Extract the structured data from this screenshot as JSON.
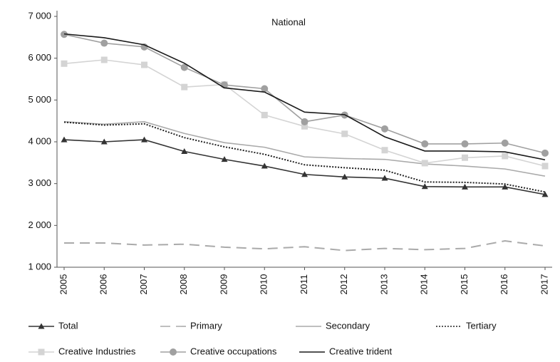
{
  "chart_data": {
    "type": "line",
    "title": "National",
    "categories": [
      "2005",
      "2006",
      "2007",
      "2008",
      "2009",
      "2010",
      "2011",
      "2012",
      "2013",
      "2014",
      "2015",
      "2016",
      "2017"
    ],
    "ylim": [
      1000,
      7000
    ],
    "yticks": [
      {
        "value": 1000,
        "label": "1 000"
      },
      {
        "value": 2000,
        "label": "2 000"
      },
      {
        "value": 3000,
        "label": "3 000"
      },
      {
        "value": 4000,
        "label": "4 000"
      },
      {
        "value": 5000,
        "label": "5 000"
      },
      {
        "value": 6000,
        "label": "6 000"
      },
      {
        "value": 7000,
        "label": "7 000"
      }
    ],
    "grid": false,
    "series": [
      {
        "name": "Total",
        "color": "#333333",
        "dash": "none",
        "marker": "triangle",
        "values": [
          4050,
          4000,
          4050,
          3770,
          3580,
          3420,
          3220,
          3160,
          3130,
          2930,
          2920,
          2920,
          2740
        ]
      },
      {
        "name": "Primary",
        "color": "#aaaaaa",
        "dash": "14,8",
        "marker": "none",
        "values": [
          1580,
          1580,
          1530,
          1550,
          1480,
          1440,
          1490,
          1400,
          1450,
          1420,
          1450,
          1630,
          1510
        ]
      },
      {
        "name": "Secondary",
        "color": "#aaaaaa",
        "dash": "none",
        "marker": "none",
        "values": [
          4480,
          4420,
          4480,
          4200,
          3980,
          3870,
          3640,
          3600,
          3580,
          3470,
          3420,
          3350,
          3180
        ]
      },
      {
        "name": "Tertiary",
        "color": "#222222",
        "dash": "2,2",
        "marker": "none",
        "values": [
          4470,
          4400,
          4430,
          4100,
          3880,
          3700,
          3450,
          3380,
          3320,
          3040,
          3030,
          2990,
          2800
        ]
      },
      {
        "name": "Creative Industries",
        "color": "#d4d4d4",
        "dash": "none",
        "marker": "square",
        "values": [
          5870,
          5960,
          5840,
          5310,
          5370,
          4640,
          4370,
          4190,
          3800,
          3490,
          3620,
          3660,
          3420
        ]
      },
      {
        "name": "Creative occupations",
        "color": "#a0a0a0",
        "dash": "none",
        "marker": "circle",
        "values": [
          6570,
          6360,
          6270,
          5780,
          5360,
          5270,
          4480,
          4640,
          4310,
          3950,
          3950,
          3970,
          3730
        ]
      },
      {
        "name": "Creative trident",
        "color": "#1a1a1a",
        "dash": "none",
        "marker": "none",
        "values": [
          6580,
          6490,
          6320,
          5880,
          5290,
          5190,
          4710,
          4650,
          4120,
          3780,
          3780,
          3760,
          3570
        ]
      }
    ]
  }
}
